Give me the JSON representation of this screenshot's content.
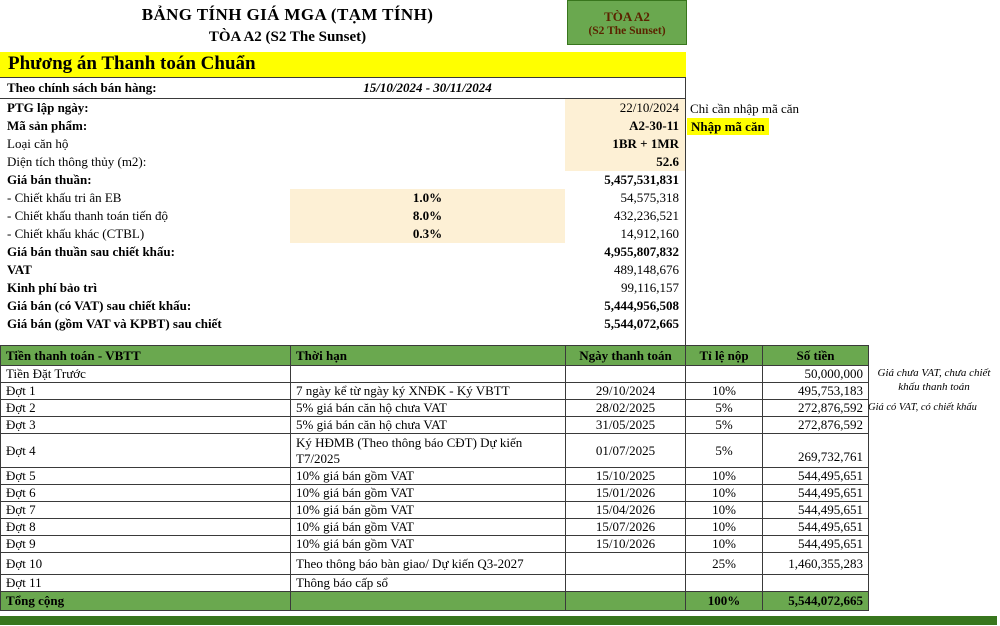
{
  "colors": {
    "green": "#6aa84f",
    "dark_green": "#38761d",
    "highlight": "#ffff00",
    "cream": "#fdf0d5",
    "badge_text": "#5b2300"
  },
  "header": {
    "title1": "BẢNG TÍNH GIÁ MGA (TẠM TÍNH)",
    "title2": "TÒA A2 (S2 The Sunset)",
    "tower_box": {
      "line1": "TÒA A2",
      "line2": "(S2 The Sunset)"
    },
    "plan_title": "Phương án Thanh toán Chuẩn"
  },
  "policy": {
    "label": "Theo chính sách bán hàng:",
    "value": "15/10/2024 - 30/11/2024"
  },
  "side_notes": {
    "hint": "Chỉ cần nhập mã căn",
    "enter_code": "Nhập mã căn"
  },
  "info_rows": [
    {
      "label": "PTG lập ngày:",
      "mid": "",
      "value": "22/10/2024"
    },
    {
      "label": "Mã sản phẩm:",
      "mid": "",
      "value": "A2-30-11"
    },
    {
      "label": "Loại căn hộ",
      "mid": "",
      "value": "1BR + 1MR"
    },
    {
      "label": "Diện tích thông thủy (m2):",
      "mid": "",
      "value": "52.6"
    },
    {
      "label": "Giá bán thuần:",
      "mid": "",
      "value": "5,457,531,831"
    },
    {
      "label": "- Chiết khấu tri ân EB",
      "mid": "1.0%",
      "value": "54,575,318"
    },
    {
      "label": "- Chiết khấu thanh toán tiến độ",
      "mid": "8.0%",
      "value": "432,236,521"
    },
    {
      "label": "- Chiết khấu khác (CTBL)",
      "mid": "0.3%",
      "value": "14,912,160"
    },
    {
      "label": "Giá bán thuần sau chiết khấu:",
      "mid": "",
      "value": "4,955,807,832"
    },
    {
      "label": "VAT",
      "mid": "",
      "value": "489,148,676"
    },
    {
      "label": "Kinh phí bảo trì",
      "mid": "",
      "value": "99,116,157"
    },
    {
      "label": "Giá bán (có VAT) sau chiết khấu:",
      "mid": "",
      "value": "5,444,956,508"
    },
    {
      "label": "Giá bán (gồm VAT và KPBT) sau chiết",
      "mid": "",
      "value": "5,544,072,665"
    }
  ],
  "payment_table": {
    "headers": [
      "Tiền thanh toán - VBTT",
      "Thời hạn",
      "Ngày thanh toán",
      "Tỉ lệ nộp",
      "Số tiền"
    ],
    "rows": [
      {
        "label": "Tiền Đặt Trước",
        "term": "",
        "date": "",
        "rate": "",
        "amount": "50,000,000"
      },
      {
        "label": "Đợt 1",
        "term": "7 ngày kể từ ngày ký XNĐK - Ký VBTT",
        "date": "29/10/2024",
        "rate": "10%",
        "amount": "495,753,183"
      },
      {
        "label": "Đợt 2",
        "term": "5% giá bán căn hộ chưa VAT",
        "date": "28/02/2025",
        "rate": "5%",
        "amount": "272,876,592"
      },
      {
        "label": "Đợt 3",
        "term": "5% giá bán căn hộ chưa VAT",
        "date": "31/05/2025",
        "rate": "5%",
        "amount": "272,876,592"
      },
      {
        "label": "Đợt 4",
        "term": "Ký HĐMB (Theo thông báo CĐT) Dự kiến T7/2025",
        "date": "01/07/2025",
        "rate": "5%",
        "amount": "269,732,761"
      },
      {
        "label": "Đợt 5",
        "term": "10% giá bán gồm VAT",
        "date": "15/10/2025",
        "rate": "10%",
        "amount": "544,495,651"
      },
      {
        "label": "Đợt 6",
        "term": "10% giá bán gồm VAT",
        "date": "15/01/2026",
        "rate": "10%",
        "amount": "544,495,651"
      },
      {
        "label": "Đợt 7",
        "term": "10% giá bán gồm VAT",
        "date": "15/04/2026",
        "rate": "10%",
        "amount": "544,495,651"
      },
      {
        "label": "Đợt 8",
        "term": "10% giá bán gồm VAT",
        "date": "15/07/2026",
        "rate": "10%",
        "amount": "544,495,651"
      },
      {
        "label": "Đợt 9",
        "term": "10% giá bán gồm VAT",
        "date": "15/10/2026",
        "rate": "10%",
        "amount": "544,495,651"
      },
      {
        "label": "Đợt 10",
        "term": "Theo thông báo bàn giao/ Dự kiến Q3-2027",
        "date": "",
        "rate": "25%",
        "amount": "1,460,355,283"
      },
      {
        "label": "Đợt 11",
        "term": "Thông báo cấp sổ",
        "date": "",
        "rate": "",
        "amount": ""
      }
    ],
    "total": {
      "label": "Tổng cộng",
      "rate": "100%",
      "amount": "5,544,072,665"
    },
    "notes": {
      "note1": "Giá chưa VAT, chưa chiết khấu thanh toán",
      "note2": "Giá có VAT, có chiết khấu"
    }
  }
}
